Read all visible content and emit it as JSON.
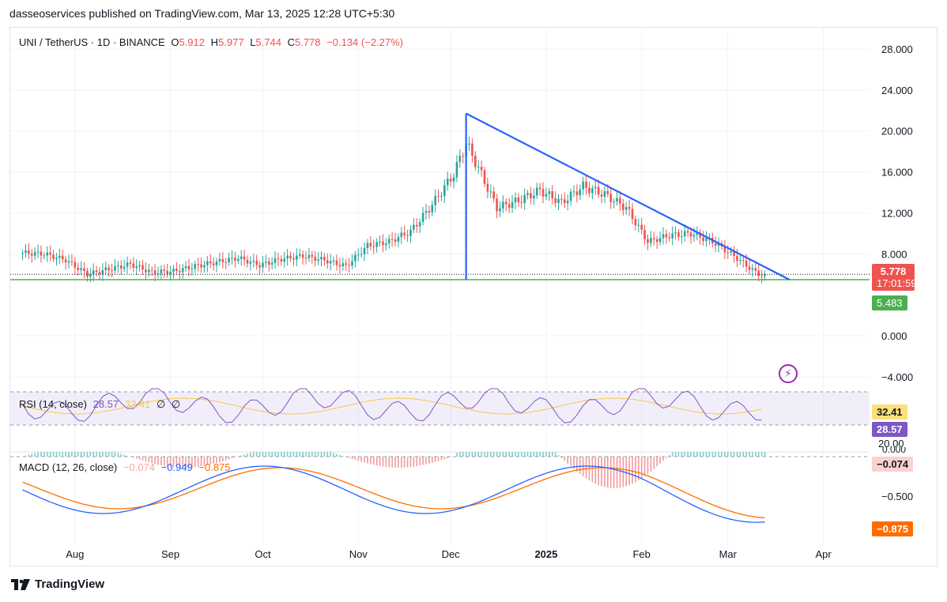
{
  "publisher_line": "dasseoservices published on TradingView.com, Mar 13, 2025 12:28 UTC+5:30",
  "legend": {
    "symbol": "UNI / TetherUS · 1D · BINANCE",
    "o_label": "O",
    "o_val": "5.912",
    "h_label": "H",
    "h_val": "5.977",
    "l_label": "L",
    "l_val": "5.744",
    "c_label": "C",
    "c_val": "5.778",
    "change": "−0.134 (−2.27%)"
  },
  "rsi_legend": {
    "label": "RSI (14, close)",
    "v1": "28.57",
    "v2": "32.41",
    "v3": "∅",
    "v4": "∅"
  },
  "macd_legend": {
    "label": "MACD (12, 26, close)",
    "hist": "−0.074",
    "macd": "−0.949",
    "signal": "−0.875"
  },
  "price_tags": {
    "last": "5.778",
    "countdown": "17:01:59",
    "support": "5.483"
  },
  "rsi_tags": {
    "ma": "32.41",
    "rsi": "28.57",
    "level": "20.00"
  },
  "macd_tags": {
    "top": "0.000",
    "hist": "−0.074",
    "signal": "−0.875"
  },
  "footer_brand": "TradingView",
  "colors": {
    "up": "#26a69a",
    "down": "#ef5350",
    "trend": "#2962ff",
    "support": "#4caf50",
    "rsi": "#7e57c2",
    "rsi_ma": "#f7c948",
    "macd": "#2962ff",
    "signal": "#ff6d00"
  },
  "chart_data": {
    "type": "candlestick",
    "title": "UNI / TetherUS · 1D · BINANCE",
    "y_axis_ticks": [
      "28.000",
      "24.000",
      "20.000",
      "16.000",
      "12.000",
      "8.000",
      "0.000",
      "−4.000"
    ],
    "ylim": [
      -5,
      30
    ],
    "x_axis_ticks": [
      "Aug",
      "Sep",
      "Oct",
      "Nov",
      "Dec",
      "2025",
      "Feb",
      "Mar",
      "Apr"
    ],
    "close_series": {
      "dates": [
        "2024-07-15",
        "2024-07-22",
        "2024-07-29",
        "2024-08-05",
        "2024-08-12",
        "2024-08-19",
        "2024-08-26",
        "2024-09-02",
        "2024-09-09",
        "2024-09-16",
        "2024-09-23",
        "2024-09-30",
        "2024-10-07",
        "2024-10-14",
        "2024-10-21",
        "2024-10-28",
        "2024-11-04",
        "2024-11-11",
        "2024-11-18",
        "2024-11-25",
        "2024-12-02",
        "2024-12-06",
        "2024-12-09",
        "2024-12-16",
        "2024-12-23",
        "2024-12-30",
        "2025-01-06",
        "2025-01-13",
        "2025-01-20",
        "2025-01-27",
        "2025-02-03",
        "2025-02-10",
        "2025-02-17",
        "2025-02-24",
        "2025-03-03",
        "2025-03-10",
        "2025-03-13"
      ],
      "values": [
        8.1,
        8.0,
        7.4,
        6.0,
        6.5,
        7.0,
        6.2,
        6.3,
        6.8,
        7.2,
        7.6,
        6.9,
        7.5,
        7.8,
        7.4,
        6.8,
        8.8,
        9.2,
        10.2,
        12.8,
        15.8,
        18.8,
        17.0,
        12.5,
        13.2,
        14.2,
        13.0,
        14.6,
        13.8,
        12.5,
        9.2,
        9.8,
        10.0,
        9.2,
        7.8,
        6.2,
        5.778
      ]
    },
    "trendline": {
      "from": {
        "date": "2024-12-06",
        "value": 21.7
      },
      "to": {
        "date": "2025-03-21",
        "value": 5.483
      }
    },
    "support_level": 5.483,
    "rsi": {
      "label": "RSI (14, close)",
      "value": 28.57,
      "ma": 32.41,
      "levels": [
        20.0
      ]
    },
    "macd": {
      "label": "MACD (12, 26, close)",
      "histogram": -0.074,
      "macd": -0.949,
      "signal": -0.875,
      "y_axis_ticks": [
        "0.000",
        "−0.500"
      ]
    }
  }
}
